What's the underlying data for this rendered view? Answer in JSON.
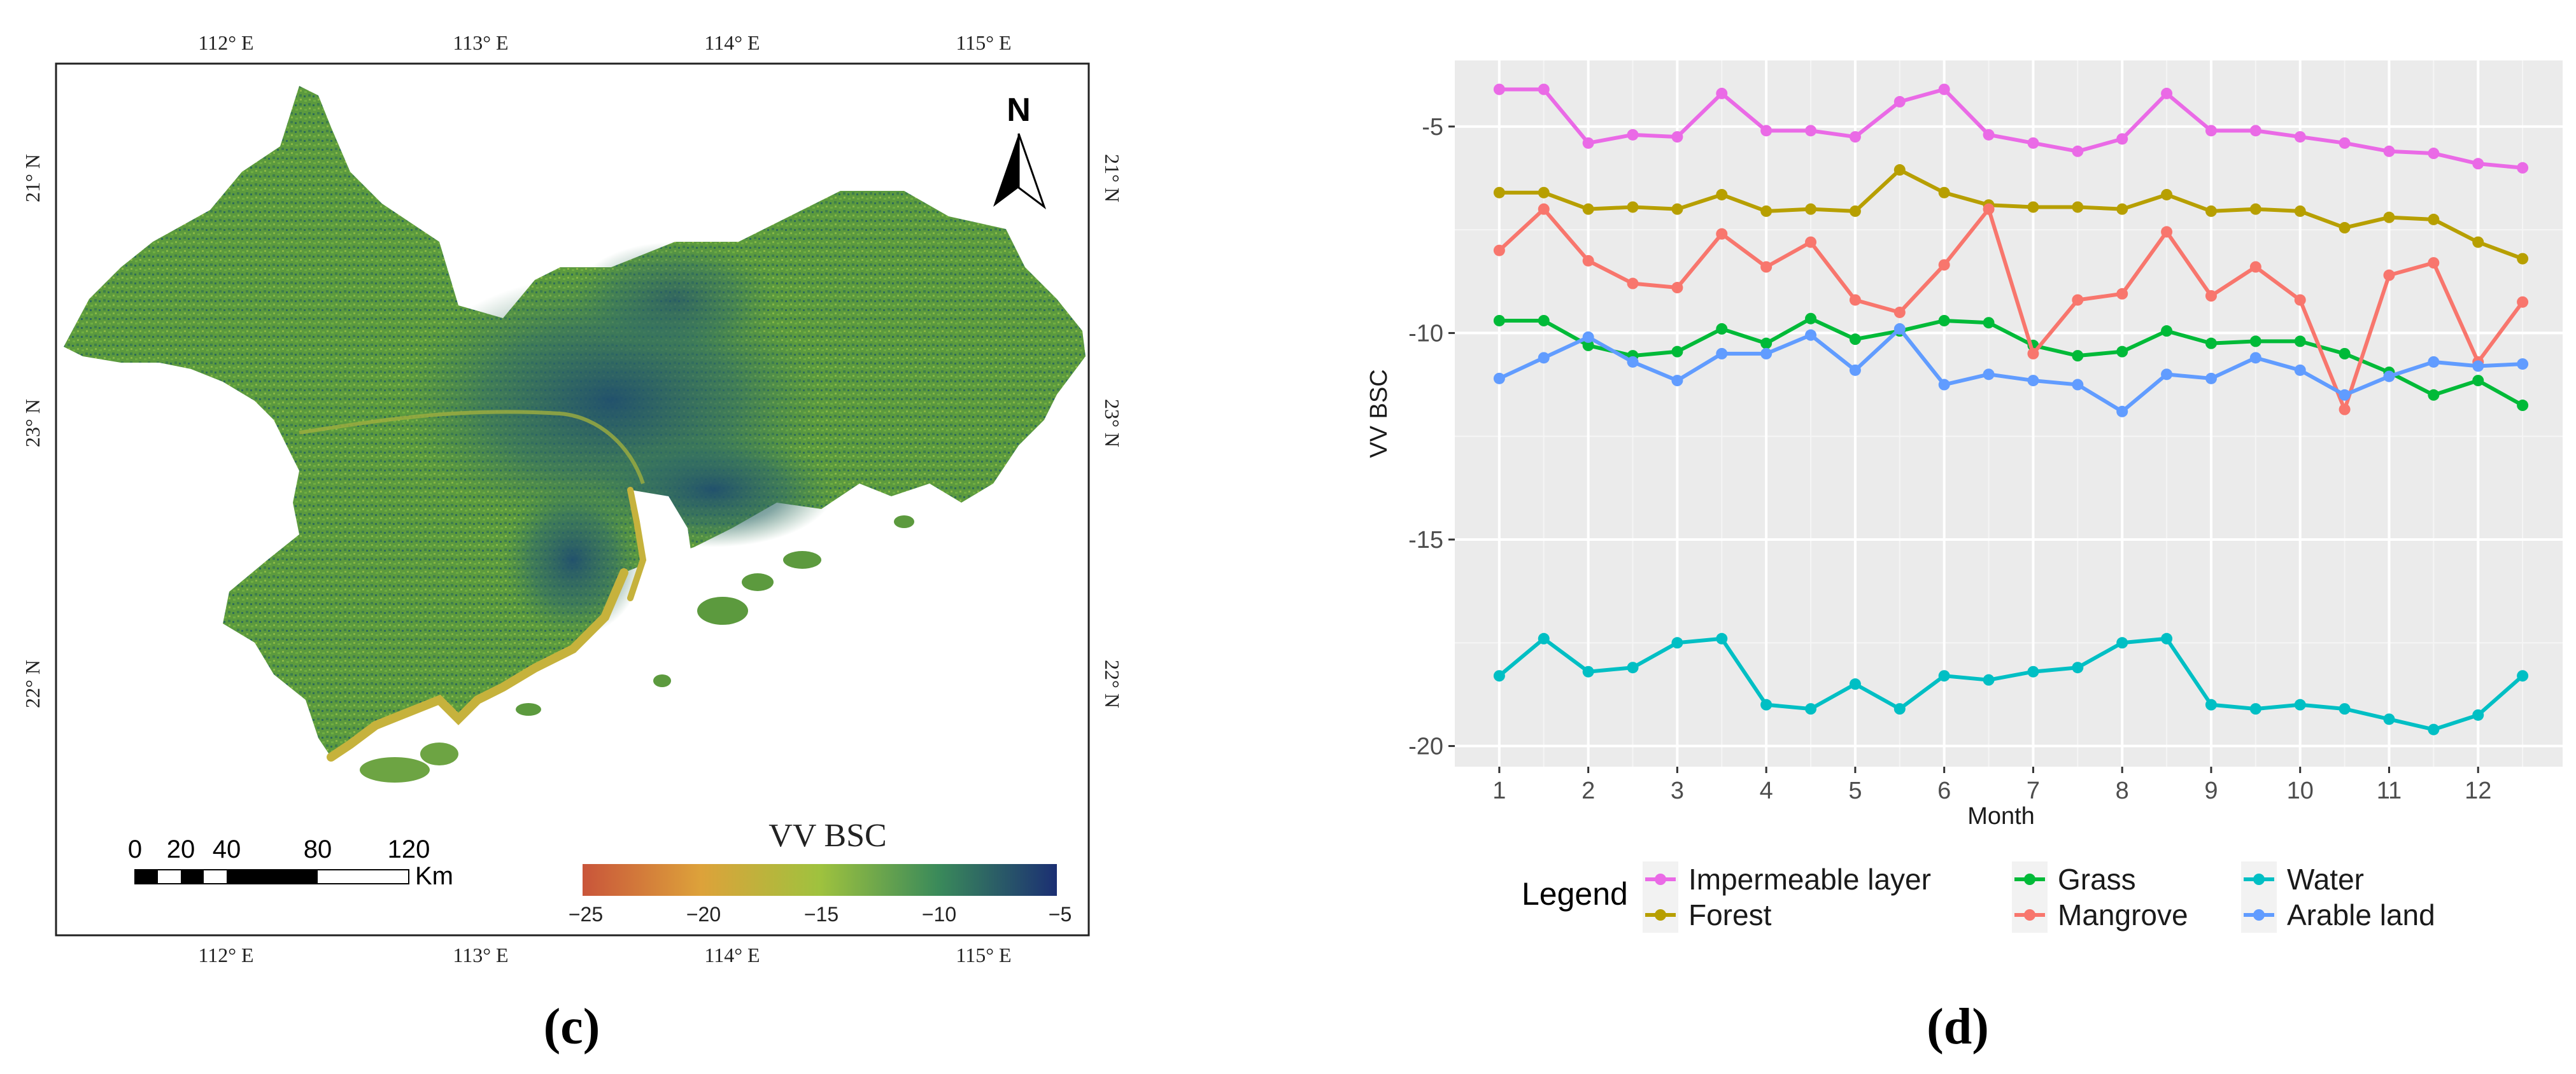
{
  "panel_c": {
    "label": "(c)",
    "north_label": "N",
    "lon_ticks": [
      "112°  E",
      "113°  E",
      "114°  E",
      "115°  E"
    ],
    "lat_ticks": [
      "21°  N",
      "23°  N",
      "22°  N"
    ],
    "scalebar": {
      "ticks": [
        "0",
        "20",
        "40",
        "80",
        "120"
      ],
      "unit": "Km"
    },
    "colorbar": {
      "title": "VV  BSC",
      "ticks": [
        "−25",
        "−20",
        "−15",
        "−10",
        "−5"
      ],
      "colors": [
        "#c9553a",
        "#dda23a",
        "#9fc23e",
        "#3a8a5a",
        "#1b2f73"
      ]
    },
    "map_colors": {
      "land": "#5c9a3e",
      "coast": "#c6b23c",
      "dense": "#1f4e6e"
    }
  },
  "panel_d": {
    "label": "(d)",
    "panel_bg": "#ebebeb",
    "legend_title": "Legend"
  },
  "chart_data": {
    "type": "line",
    "title": "",
    "xlabel": "Month",
    "ylabel": "VV BSC",
    "x": [
      1,
      1.5,
      2,
      2.5,
      3,
      3.5,
      4,
      4.5,
      5,
      5.5,
      6,
      6.5,
      7,
      7.5,
      8,
      8.5,
      9,
      9.5,
      10,
      10.5,
      11,
      11.5,
      12,
      12.5
    ],
    "x_ticks": [
      "1",
      "2",
      "3",
      "4",
      "5",
      "6",
      "7",
      "8",
      "9",
      "10",
      "11",
      "12"
    ],
    "y_ticks": [
      "-5",
      "-10",
      "-15",
      "-20"
    ],
    "ylim": [
      -20.5,
      -3.4
    ],
    "xlim": [
      0.5,
      12.95
    ],
    "grid": true,
    "legend_position": "bottom",
    "series": [
      {
        "name": "Impermeable layer",
        "color": "#ea6ae6",
        "values": [
          -4.1,
          -4.1,
          -5.4,
          -5.2,
          -5.25,
          -4.2,
          -5.1,
          -5.1,
          -5.25,
          -4.4,
          -4.1,
          -5.2,
          -5.4,
          -5.6,
          -5.3,
          -4.2,
          -5.1,
          -5.1,
          -5.25,
          -5.4,
          -5.6,
          -5.65,
          -5.9,
          -6.0
        ]
      },
      {
        "name": "Forest",
        "color": "#b79f00",
        "values": [
          -6.6,
          -6.6,
          -7.0,
          -6.95,
          -7.0,
          -6.65,
          -7.05,
          -7.0,
          -7.05,
          -6.05,
          -6.6,
          -6.9,
          -6.95,
          -6.95,
          -7.0,
          -6.65,
          -7.05,
          -7.0,
          -7.05,
          -7.45,
          -7.2,
          -7.25,
          -7.8,
          -8.2
        ]
      },
      {
        "name": "Grass",
        "color": "#00ba38",
        "values": [
          -9.7,
          -9.7,
          -10.3,
          -10.55,
          -10.45,
          -9.9,
          -10.25,
          -9.65,
          -10.15,
          -9.95,
          -9.7,
          -9.75,
          -10.3,
          -10.55,
          -10.45,
          -9.95,
          -10.25,
          -10.2,
          -10.2,
          -10.5,
          -10.95,
          -11.5,
          -11.15,
          -11.75
        ]
      },
      {
        "name": "Water",
        "color": "#00bfc4",
        "values": [
          -18.3,
          -17.4,
          -18.2,
          -18.1,
          -17.5,
          -17.4,
          -19.0,
          -19.1,
          -18.5,
          -19.1,
          -18.3,
          -18.4,
          -18.2,
          -18.1,
          -17.5,
          -17.4,
          -19.0,
          -19.1,
          -19.0,
          -19.1,
          -19.35,
          -19.6,
          -19.25,
          -18.3
        ]
      },
      {
        "name": "Mangrove",
        "color": "#f8766d",
        "values": [
          -8.0,
          -7.0,
          -8.25,
          -8.8,
          -8.9,
          -7.6,
          -8.4,
          -7.8,
          -9.2,
          -9.5,
          -8.35,
          -7.0,
          -10.5,
          -9.2,
          -9.05,
          -7.55,
          -9.1,
          -8.4,
          -9.2,
          -11.85,
          -8.6,
          -8.3,
          -10.7,
          -9.25
        ]
      },
      {
        "name": "Arable land",
        "color": "#619cff",
        "values": [
          -11.1,
          -10.6,
          -10.1,
          -10.7,
          -11.15,
          -10.5,
          -10.5,
          -10.05,
          -10.9,
          -9.9,
          -11.25,
          -11.0,
          -11.15,
          -11.25,
          -11.9,
          -11.0,
          -11.1,
          -10.6,
          -10.9,
          -11.5,
          -11.05,
          -10.7,
          -10.8,
          -10.75
        ]
      }
    ]
  }
}
